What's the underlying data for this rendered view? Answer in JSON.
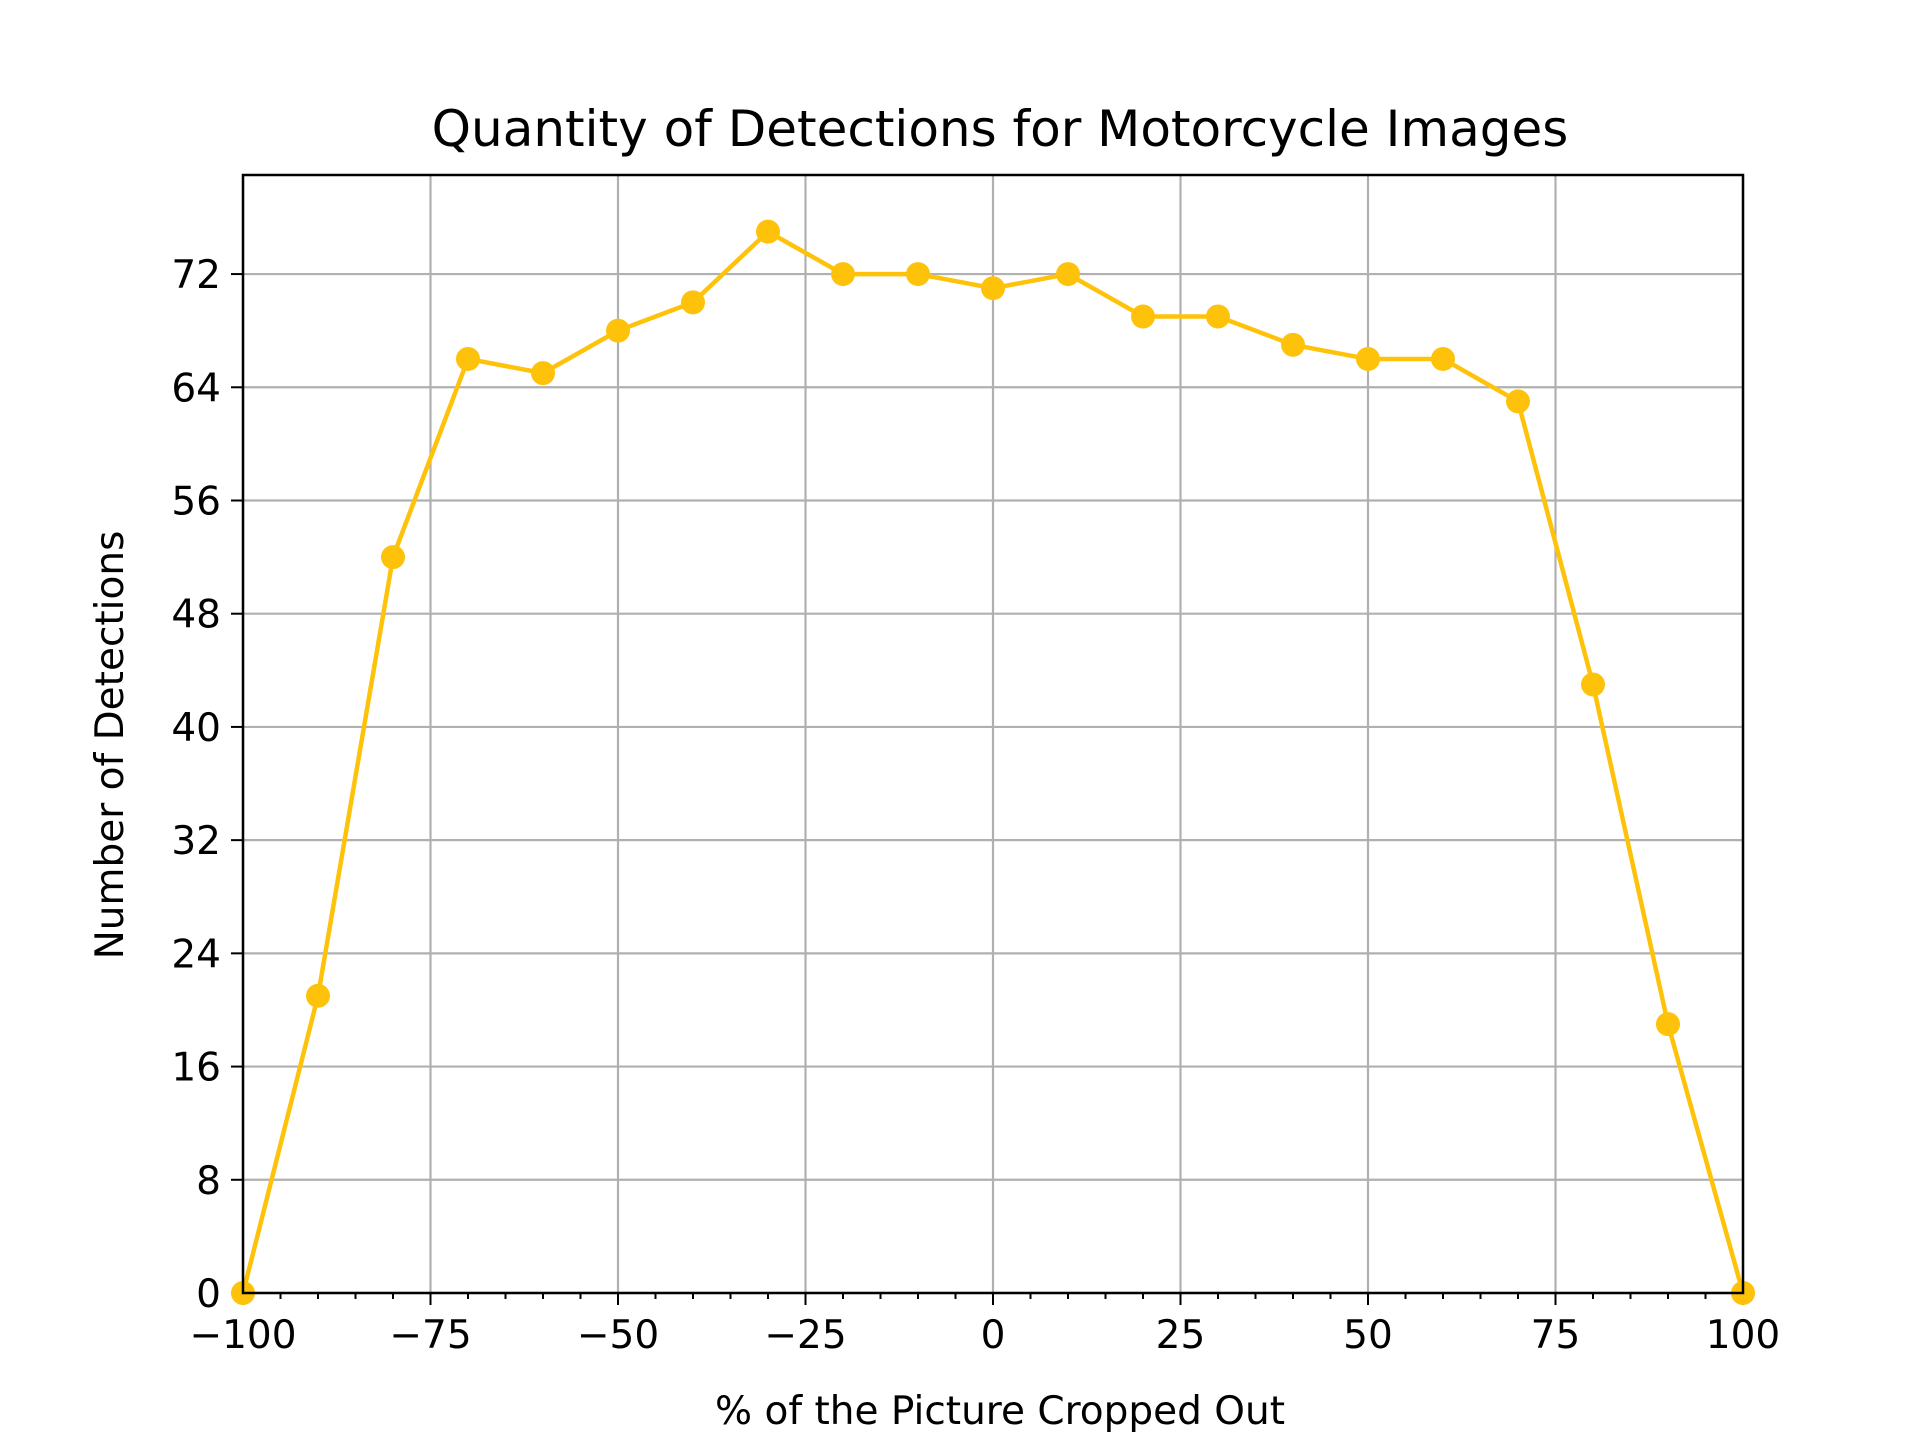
{
  "chart_data": {
    "type": "line",
    "title": "Quantity of Detections for Motorcycle Images",
    "xlabel": "% of the Picture Cropped Out",
    "ylabel": "Number of Detections",
    "xlim": [
      -100,
      100
    ],
    "ylim": [
      0,
      79
    ],
    "xticks": [
      -100,
      -75,
      -50,
      -25,
      0,
      25,
      50,
      75,
      100
    ],
    "xtick_labels": [
      "−100",
      "−75",
      "−50",
      "−25",
      "0",
      "25",
      "50",
      "75",
      "100"
    ],
    "yticks": [
      0,
      8,
      16,
      24,
      32,
      40,
      48,
      56,
      64,
      72
    ],
    "ytick_labels": [
      "0",
      "8",
      "16",
      "24",
      "32",
      "40",
      "48",
      "56",
      "64",
      "72"
    ],
    "grid": true,
    "series": [
      {
        "color": "#ffc20a",
        "x": [
          -100,
          -90,
          -80,
          -70,
          -60,
          -50,
          -40,
          -30,
          -20,
          -10,
          0,
          10,
          20,
          30,
          40,
          50,
          60,
          70,
          80,
          90,
          100
        ],
        "y": [
          0,
          21,
          52,
          66,
          65,
          68,
          70,
          75,
          72,
          72,
          71,
          72,
          69,
          69,
          67,
          66,
          66,
          63,
          43,
          19,
          0
        ]
      }
    ]
  }
}
